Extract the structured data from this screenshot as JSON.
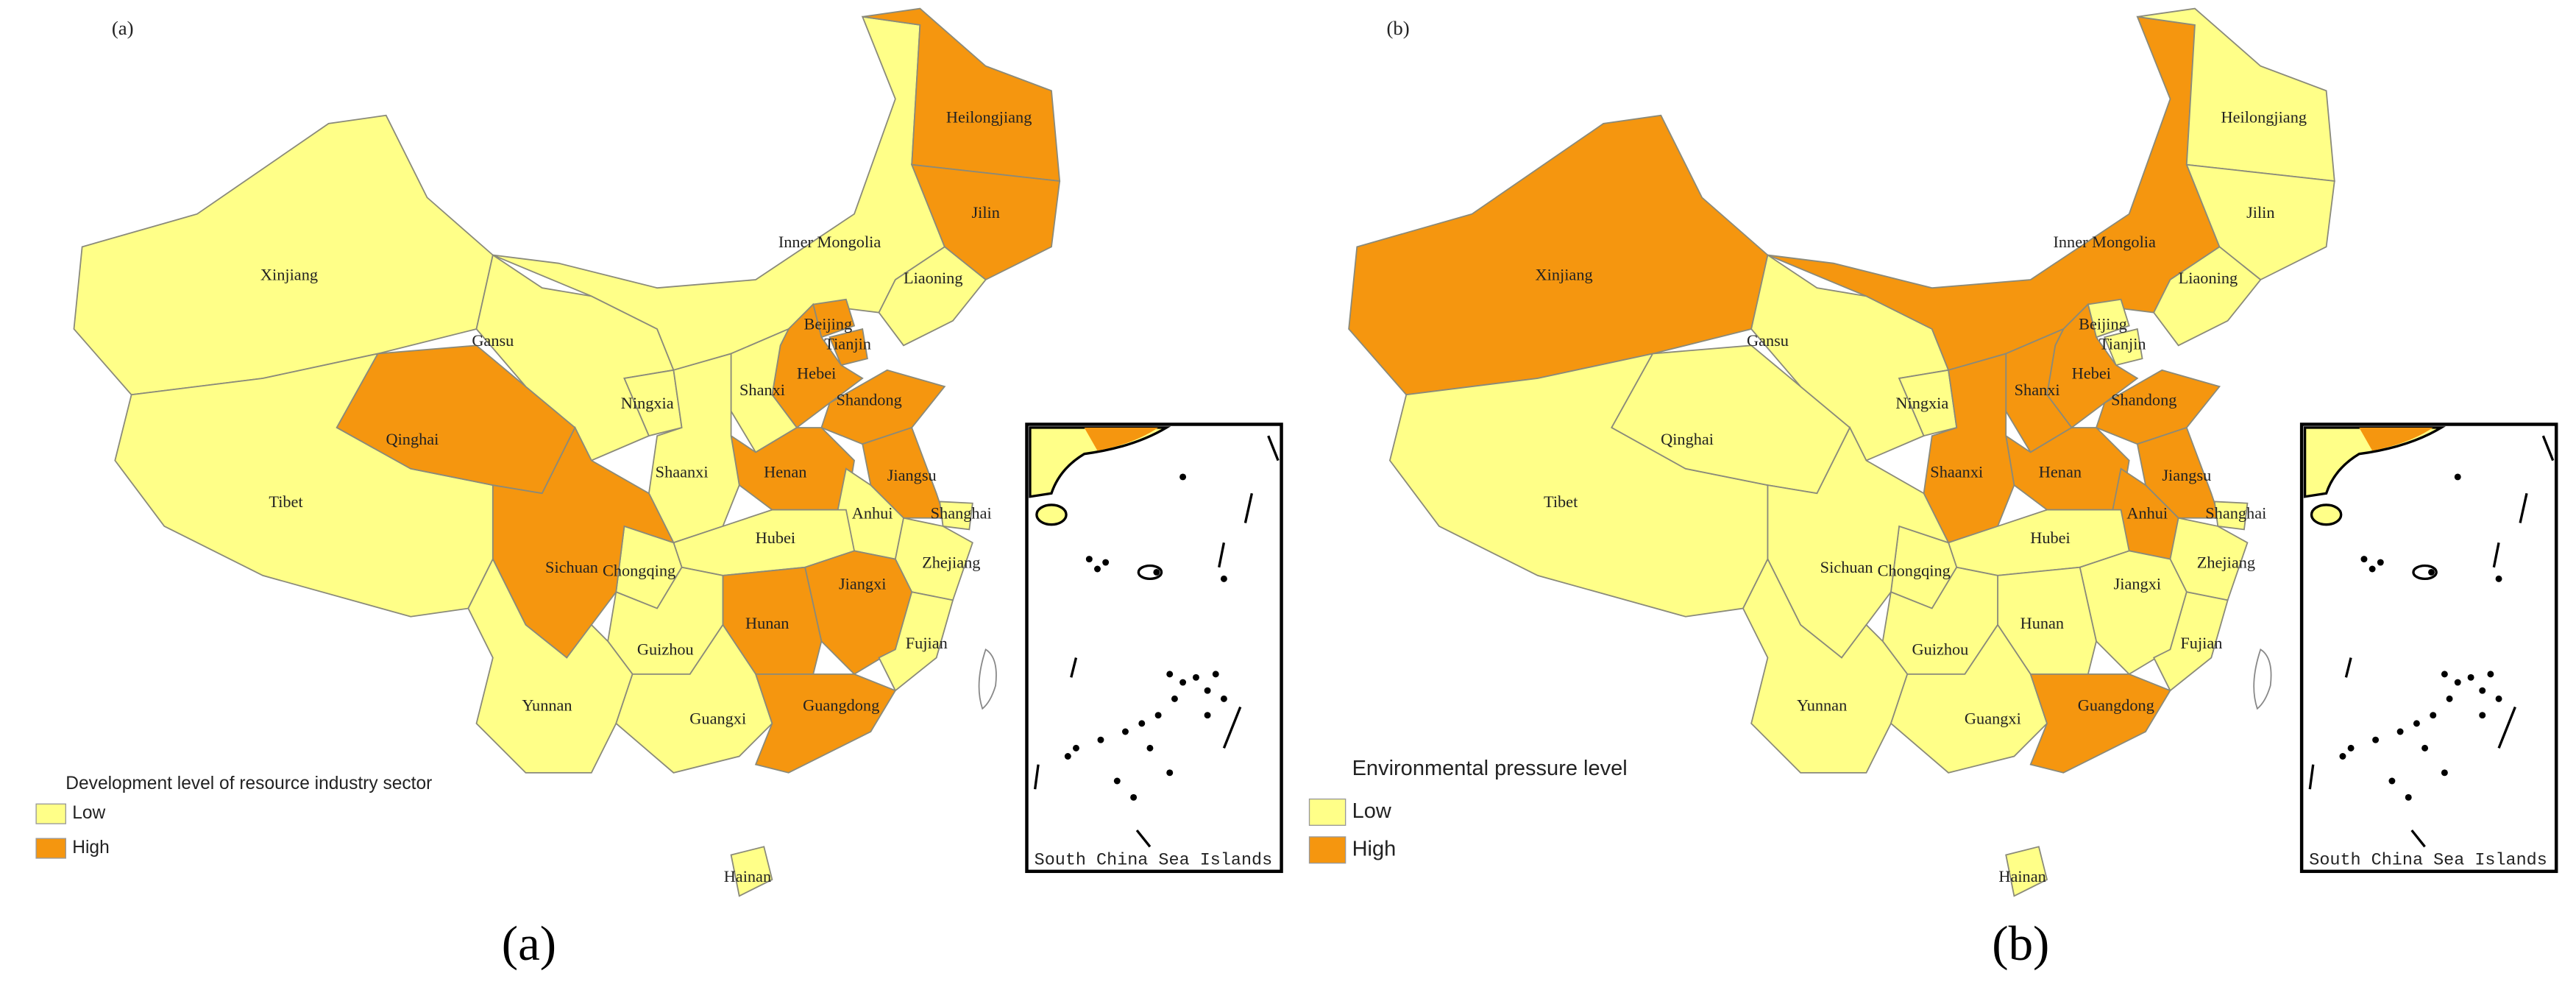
{
  "panels": [
    {
      "tag": "(a)",
      "caption": "(a)",
      "inset_label": "South China Sea Islands",
      "legend": {
        "title": "Development level of resource industry sector",
        "items": [
          {
            "label": "Low",
            "color": "#ffff88"
          },
          {
            "label": "High",
            "color": "#f5960f"
          }
        ]
      },
      "regions": [
        {
          "name": "Xinjiang",
          "level": 0
        },
        {
          "name": "Tibet",
          "level": 0
        },
        {
          "name": "Qinghai",
          "level": 1
        },
        {
          "name": "Gansu",
          "level": 0
        },
        {
          "name": "Ningxia",
          "level": 0
        },
        {
          "name": "Inner Mongolia",
          "level": 0
        },
        {
          "name": "Heilongjiang",
          "level": 1
        },
        {
          "name": "Jilin",
          "level": 1
        },
        {
          "name": "Liaoning",
          "level": 0
        },
        {
          "name": "Beijing",
          "level": 1
        },
        {
          "name": "Tianjin",
          "level": 1
        },
        {
          "name": "Hebei",
          "level": 1
        },
        {
          "name": "Shanxi",
          "level": 0
        },
        {
          "name": "Shandong",
          "level": 1
        },
        {
          "name": "Henan",
          "level": 1
        },
        {
          "name": "Shaanxi",
          "level": 0
        },
        {
          "name": "Jiangsu",
          "level": 1
        },
        {
          "name": "Anhui",
          "level": 0
        },
        {
          "name": "Shanghai",
          "level": 0
        },
        {
          "name": "Hubei",
          "level": 0
        },
        {
          "name": "Zhejiang",
          "level": 0
        },
        {
          "name": "Chongqing",
          "level": 0
        },
        {
          "name": "Sichuan",
          "level": 1
        },
        {
          "name": "Jiangxi",
          "level": 1
        },
        {
          "name": "Hunan",
          "level": 1
        },
        {
          "name": "Guizhou",
          "level": 0
        },
        {
          "name": "Fujian",
          "level": 0
        },
        {
          "name": "Yunnan",
          "level": 0
        },
        {
          "name": "Guangxi",
          "level": 0
        },
        {
          "name": "Guangdong",
          "level": 1
        },
        {
          "name": "Hainan",
          "level": 0
        }
      ]
    },
    {
      "tag": "(b)",
      "caption": "(b)",
      "inset_label": "South China Sea Islands",
      "legend": {
        "title": "Environmental pressure level",
        "items": [
          {
            "label": "Low",
            "color": "#ffff88"
          },
          {
            "label": "High",
            "color": "#f5960f"
          }
        ]
      },
      "regions": [
        {
          "name": "Xinjiang",
          "level": 1
        },
        {
          "name": "Tibet",
          "level": 0
        },
        {
          "name": "Qinghai",
          "level": 0
        },
        {
          "name": "Gansu",
          "level": 0
        },
        {
          "name": "Ningxia",
          "level": 0
        },
        {
          "name": "Inner Mongolia",
          "level": 1
        },
        {
          "name": "Heilongjiang",
          "level": 0
        },
        {
          "name": "Jilin",
          "level": 0
        },
        {
          "name": "Liaoning",
          "level": 0
        },
        {
          "name": "Beijing",
          "level": 0
        },
        {
          "name": "Tianjin",
          "level": 0
        },
        {
          "name": "Hebei",
          "level": 1
        },
        {
          "name": "Shanxi",
          "level": 1
        },
        {
          "name": "Shandong",
          "level": 1
        },
        {
          "name": "Henan",
          "level": 1
        },
        {
          "name": "Shaanxi",
          "level": 1
        },
        {
          "name": "Jiangsu",
          "level": 1
        },
        {
          "name": "Anhui",
          "level": 1
        },
        {
          "name": "Shanghai",
          "level": 0
        },
        {
          "name": "Hubei",
          "level": 0
        },
        {
          "name": "Zhejiang",
          "level": 0
        },
        {
          "name": "Chongqing",
          "level": 0
        },
        {
          "name": "Sichuan",
          "level": 0
        },
        {
          "name": "Jiangxi",
          "level": 0
        },
        {
          "name": "Hunan",
          "level": 0
        },
        {
          "name": "Guizhou",
          "level": 0
        },
        {
          "name": "Fujian",
          "level": 0
        },
        {
          "name": "Yunnan",
          "level": 0
        },
        {
          "name": "Guangxi",
          "level": 0
        },
        {
          "name": "Guangdong",
          "level": 1
        },
        {
          "name": "Hainan",
          "level": 0
        }
      ]
    }
  ]
}
